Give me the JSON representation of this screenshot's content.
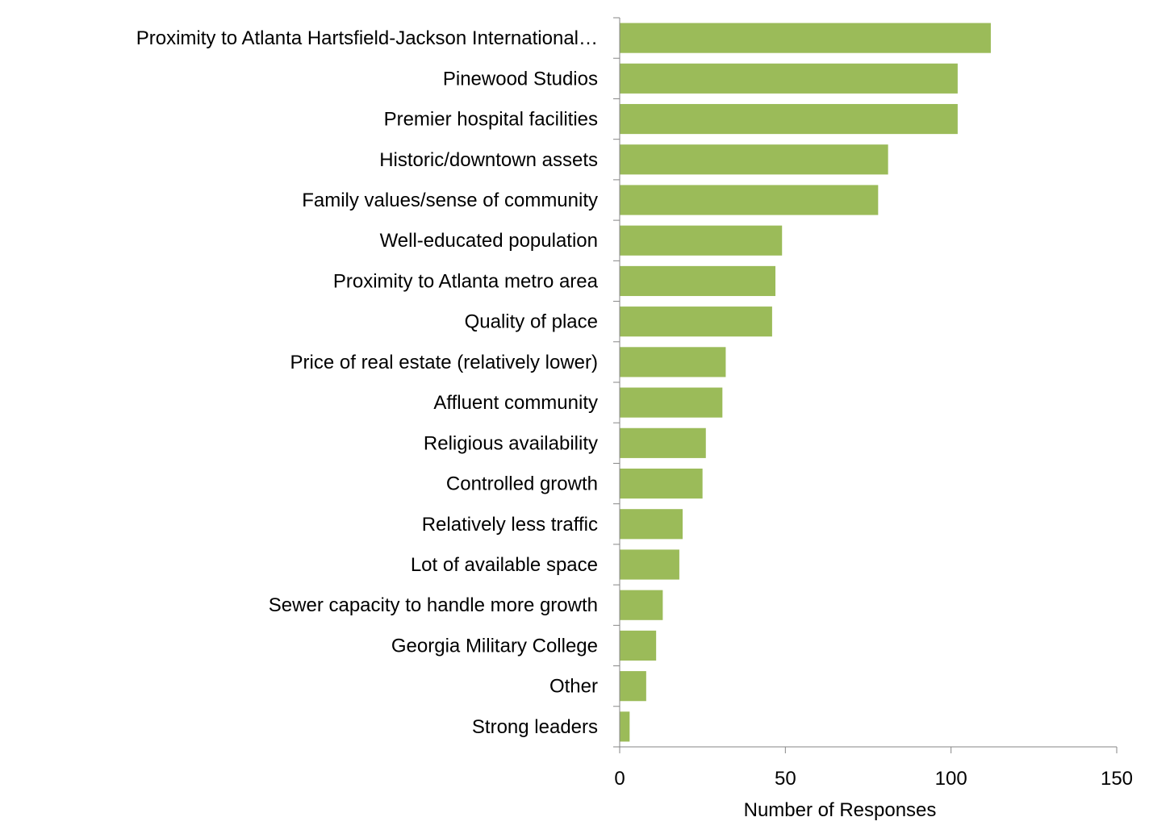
{
  "chart_data": {
    "type": "bar",
    "orientation": "horizontal",
    "categories": [
      "Proximity to Atlanta Hartsfield-Jackson International…",
      "Pinewood Studios",
      "Premier hospital facilities",
      "Historic/downtown assets",
      "Family values/sense of community",
      "Well-educated population",
      "Proximity to Atlanta metro area",
      "Quality of place",
      "Price of real estate (relatively lower)",
      "Affluent community",
      "Religious availability",
      "Controlled growth",
      "Relatively less traffic",
      "Lot of available space",
      "Sewer capacity to handle more growth",
      "Georgia Military College",
      "Other",
      "Strong leaders"
    ],
    "values": [
      112,
      102,
      102,
      81,
      78,
      49,
      47,
      46,
      32,
      31,
      26,
      25,
      19,
      18,
      13,
      11,
      8,
      3
    ],
    "xlabel": "Number of Responses",
    "ylabel": "",
    "title": "",
    "xlim": [
      0,
      150
    ],
    "xticks": [
      0,
      50,
      100,
      150
    ],
    "grid": false,
    "legend": "none",
    "bar_color": "#9BBB59",
    "axis_color": "#868686"
  }
}
